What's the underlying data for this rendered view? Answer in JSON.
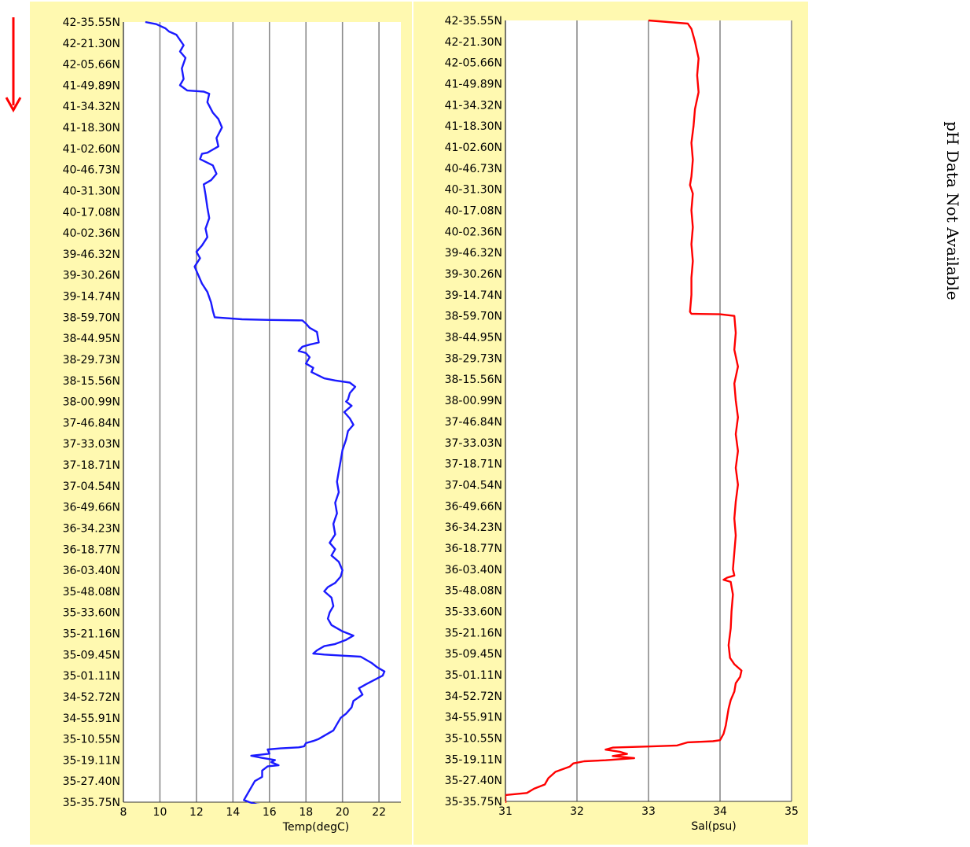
{
  "note": "pH Data Not Available",
  "chart_data": [
    {
      "type": "line",
      "xlabel": "Temp(degC)",
      "ylabel": "",
      "xlim": [
        8,
        23.2
      ],
      "xticks": [
        8,
        10,
        12,
        14,
        16,
        18,
        20,
        22
      ],
      "color": "#1a1aff",
      "y_categories": [
        "42-35.55N",
        "42-21.30N",
        "42-05.66N",
        "41-49.89N",
        "41-34.32N",
        "41-18.30N",
        "41-02.60N",
        "40-46.73N",
        "40-31.30N",
        "40-17.08N",
        "40-02.36N",
        "39-46.32N",
        "39-30.26N",
        "39-14.74N",
        "38-59.70N",
        "38-44.95N",
        "38-29.73N",
        "38-15.56N",
        "38-00.99N",
        "37-46.84N",
        "37-33.03N",
        "37-18.71N",
        "37-04.54N",
        "36-49.66N",
        "36-34.23N",
        "36-18.77N",
        "36-03.40N",
        "35-48.08N",
        "35-33.60N",
        "35-21.16N",
        "35-09.45N",
        "35-01.11N",
        "34-52.72N",
        "34-55.91N",
        "35-10.55N",
        "35-19.11N",
        "35-27.40N",
        "35-35.75N"
      ],
      "series": [
        {
          "points": [
            [
              9.2,
              0
            ],
            [
              9.8,
              0.1
            ],
            [
              10.3,
              0.3
            ],
            [
              10.5,
              0.45
            ],
            [
              10.9,
              0.6
            ],
            [
              11.3,
              1.1
            ],
            [
              11.1,
              1.4
            ],
            [
              11.4,
              1.7
            ],
            [
              11.2,
              2.2
            ],
            [
              11.3,
              2.7
            ],
            [
              11.1,
              3.0
            ],
            [
              11.5,
              3.25
            ],
            [
              12.4,
              3.3
            ],
            [
              12.7,
              3.4
            ],
            [
              12.6,
              3.8
            ],
            [
              12.9,
              4.3
            ],
            [
              13.2,
              4.6
            ],
            [
              13.4,
              5.0
            ],
            [
              13.1,
              5.5
            ],
            [
              13.2,
              5.9
            ],
            [
              12.8,
              6.1
            ],
            [
              12.6,
              6.2
            ],
            [
              12.3,
              6.25
            ],
            [
              12.2,
              6.5
            ],
            [
              12.9,
              6.8
            ],
            [
              13.1,
              7.2
            ],
            [
              12.8,
              7.5
            ],
            [
              12.4,
              7.7
            ],
            [
              12.5,
              8.2
            ],
            [
              12.6,
              8.8
            ],
            [
              12.7,
              9.3
            ],
            [
              12.5,
              9.8
            ],
            [
              12.6,
              10.2
            ],
            [
              12.3,
              10.6
            ],
            [
              12.0,
              10.9
            ],
            [
              12.2,
              11.2
            ],
            [
              11.9,
              11.6
            ],
            [
              12.1,
              12.0
            ],
            [
              12.3,
              12.4
            ],
            [
              12.6,
              12.8
            ],
            [
              12.8,
              13.3
            ],
            [
              12.9,
              13.7
            ],
            [
              13.0,
              14.0
            ],
            [
              14.5,
              14.1
            ],
            [
              16.0,
              14.13
            ],
            [
              17.8,
              14.15
            ],
            [
              18.0,
              14.3
            ],
            [
              18.2,
              14.5
            ],
            [
              18.6,
              14.7
            ],
            [
              18.7,
              15.2
            ],
            [
              18.2,
              15.3
            ],
            [
              17.8,
              15.4
            ],
            [
              17.6,
              15.6
            ],
            [
              18.0,
              15.7
            ],
            [
              18.2,
              15.9
            ],
            [
              18.0,
              16.2
            ],
            [
              18.4,
              16.4
            ],
            [
              18.3,
              16.6
            ],
            [
              19.0,
              16.9
            ],
            [
              19.6,
              17.0
            ],
            [
              20.4,
              17.1
            ],
            [
              20.7,
              17.3
            ],
            [
              20.4,
              17.6
            ],
            [
              20.3,
              17.9
            ],
            [
              20.2,
              18.0
            ],
            [
              20.5,
              18.2
            ],
            [
              20.1,
              18.5
            ],
            [
              20.4,
              18.8
            ],
            [
              20.6,
              19.1
            ],
            [
              20.3,
              19.4
            ],
            [
              20.2,
              19.8
            ],
            [
              20.0,
              20.3
            ],
            [
              19.9,
              20.8
            ],
            [
              19.8,
              21.3
            ],
            [
              19.7,
              21.8
            ],
            [
              19.8,
              22.3
            ],
            [
              19.6,
              22.8
            ],
            [
              19.7,
              23.3
            ],
            [
              19.5,
              23.8
            ],
            [
              19.6,
              24.3
            ],
            [
              19.3,
              24.7
            ],
            [
              19.6,
              25.0
            ],
            [
              19.4,
              25.3
            ],
            [
              19.8,
              25.6
            ],
            [
              20.0,
              26.0
            ],
            [
              19.9,
              26.3
            ],
            [
              19.6,
              26.6
            ],
            [
              19.2,
              26.8
            ],
            [
              19.0,
              27.0
            ],
            [
              19.4,
              27.3
            ],
            [
              19.5,
              27.7
            ],
            [
              19.3,
              28.0
            ],
            [
              19.2,
              28.3
            ],
            [
              19.4,
              28.6
            ],
            [
              20.0,
              28.9
            ],
            [
              20.6,
              29.1
            ],
            [
              20.2,
              29.3
            ],
            [
              19.9,
              29.4
            ],
            [
              19.6,
              29.5
            ],
            [
              19.0,
              29.6
            ],
            [
              18.6,
              29.8
            ],
            [
              18.4,
              29.95
            ],
            [
              19.0,
              30.0
            ],
            [
              20.0,
              30.05
            ],
            [
              21.0,
              30.1
            ],
            [
              21.6,
              30.4
            ],
            [
              21.9,
              30.6
            ],
            [
              22.3,
              30.8
            ],
            [
              22.2,
              31.0
            ],
            [
              21.3,
              31.4
            ],
            [
              20.9,
              31.6
            ],
            [
              21.1,
              31.9
            ],
            [
              20.6,
              32.2
            ],
            [
              20.5,
              32.5
            ],
            [
              20.2,
              32.8
            ],
            [
              19.9,
              33.0
            ],
            [
              19.7,
              33.3
            ],
            [
              19.5,
              33.6
            ],
            [
              19.1,
              33.8
            ],
            [
              18.7,
              34.0
            ],
            [
              18.4,
              34.1
            ],
            [
              18.0,
              34.2
            ],
            [
              17.9,
              34.35
            ],
            [
              17.6,
              34.4
            ],
            [
              16.6,
              34.45
            ],
            [
              15.9,
              34.5
            ],
            [
              16.0,
              34.7
            ],
            [
              15.5,
              34.75
            ],
            [
              15.0,
              34.8
            ],
            [
              15.6,
              34.9
            ],
            [
              16.3,
              35.0
            ],
            [
              16.1,
              35.1
            ],
            [
              16.5,
              35.25
            ],
            [
              15.9,
              35.3
            ],
            [
              15.6,
              35.5
            ],
            [
              15.6,
              35.8
            ],
            [
              15.4,
              35.9
            ],
            [
              15.2,
              36.0
            ],
            [
              15.0,
              36.3
            ],
            [
              14.8,
              36.6
            ],
            [
              14.6,
              36.9
            ],
            [
              14.9,
              37.0
            ],
            [
              15.3,
              37.1
            ],
            [
              15.8,
              37.15
            ]
          ]
        }
      ]
    },
    {
      "type": "line",
      "xlabel": "Sal(psu)",
      "ylabel": "",
      "xlim": [
        31,
        35
      ],
      "xticks": [
        31,
        32,
        33,
        34,
        35
      ],
      "color": "#ff0000",
      "y_categories": [
        "42-35.55N",
        "42-21.30N",
        "42-05.66N",
        "41-49.89N",
        "41-34.32N",
        "41-18.30N",
        "41-02.60N",
        "40-46.73N",
        "40-31.30N",
        "40-17.08N",
        "40-02.36N",
        "39-46.32N",
        "39-30.26N",
        "39-14.74N",
        "38-59.70N",
        "38-44.95N",
        "38-29.73N",
        "38-15.56N",
        "38-00.99N",
        "37-46.84N",
        "37-33.03N",
        "37-18.71N",
        "37-04.54N",
        "36-49.66N",
        "36-34.23N",
        "36-18.77N",
        "36-03.40N",
        "35-48.08N",
        "35-33.60N",
        "35-21.16N",
        "35-09.45N",
        "35-01.11N",
        "34-52.72N",
        "34-55.91N",
        "35-10.55N",
        "35-19.11N",
        "35-27.40N",
        "35-35.75N"
      ],
      "series": [
        {
          "points": [
            [
              33.0,
              0
            ],
            [
              33.55,
              0.15
            ],
            [
              33.6,
              0.4
            ],
            [
              33.65,
              1.0
            ],
            [
              33.7,
              1.8
            ],
            [
              33.68,
              2.6
            ],
            [
              33.7,
              3.4
            ],
            [
              33.65,
              4.2
            ],
            [
              33.63,
              5.0
            ],
            [
              33.6,
              5.8
            ],
            [
              33.62,
              6.6
            ],
            [
              33.6,
              7.4
            ],
            [
              33.58,
              7.8
            ],
            [
              33.62,
              8.2
            ],
            [
              33.6,
              9.0
            ],
            [
              33.62,
              9.8
            ],
            [
              33.6,
              10.6
            ],
            [
              33.62,
              11.4
            ],
            [
              33.6,
              12.2
            ],
            [
              33.6,
              13.0
            ],
            [
              33.58,
              13.8
            ],
            [
              33.6,
              13.9
            ],
            [
              34.0,
              13.92
            ],
            [
              34.2,
              14.0
            ],
            [
              34.22,
              14.8
            ],
            [
              34.2,
              15.6
            ],
            [
              34.25,
              16.4
            ],
            [
              34.2,
              17.2
            ],
            [
              34.22,
              18.0
            ],
            [
              34.25,
              18.8
            ],
            [
              34.22,
              19.6
            ],
            [
              34.25,
              20.4
            ],
            [
              34.22,
              21.2
            ],
            [
              34.25,
              22.0
            ],
            [
              34.22,
              22.8
            ],
            [
              34.2,
              23.6
            ],
            [
              34.22,
              24.4
            ],
            [
              34.2,
              25.2
            ],
            [
              34.18,
              26.0
            ],
            [
              34.2,
              26.3
            ],
            [
              34.1,
              26.4
            ],
            [
              34.05,
              26.5
            ],
            [
              34.15,
              26.6
            ],
            [
              34.18,
              27.2
            ],
            [
              34.16,
              28.0
            ],
            [
              34.15,
              28.8
            ],
            [
              34.12,
              29.6
            ],
            [
              34.14,
              30.2
            ],
            [
              34.2,
              30.5
            ],
            [
              34.3,
              30.8
            ],
            [
              34.28,
              31.1
            ],
            [
              34.22,
              31.4
            ],
            [
              34.2,
              31.8
            ],
            [
              34.15,
              32.2
            ],
            [
              34.12,
              32.6
            ],
            [
              34.1,
              33.0
            ],
            [
              34.08,
              33.4
            ],
            [
              34.05,
              33.8
            ],
            [
              34.0,
              34.1
            ],
            [
              33.9,
              34.15
            ],
            [
              33.55,
              34.2
            ],
            [
              33.45,
              34.3
            ],
            [
              33.4,
              34.35
            ],
            [
              33.0,
              34.4
            ],
            [
              32.5,
              34.45
            ],
            [
              32.4,
              34.55
            ],
            [
              32.6,
              34.65
            ],
            [
              32.7,
              34.75
            ],
            [
              32.5,
              34.85
            ],
            [
              32.8,
              34.95
            ],
            [
              32.4,
              35.05
            ],
            [
              32.1,
              35.1
            ],
            [
              31.95,
              35.2
            ],
            [
              31.9,
              35.35
            ],
            [
              31.7,
              35.6
            ],
            [
              31.6,
              35.9
            ],
            [
              31.55,
              36.2
            ],
            [
              31.4,
              36.4
            ],
            [
              31.3,
              36.6
            ],
            [
              31.0,
              36.7
            ],
            [
              31.0,
              37.15
            ],
            [
              31.3,
              37.2
            ]
          ]
        }
      ]
    }
  ]
}
